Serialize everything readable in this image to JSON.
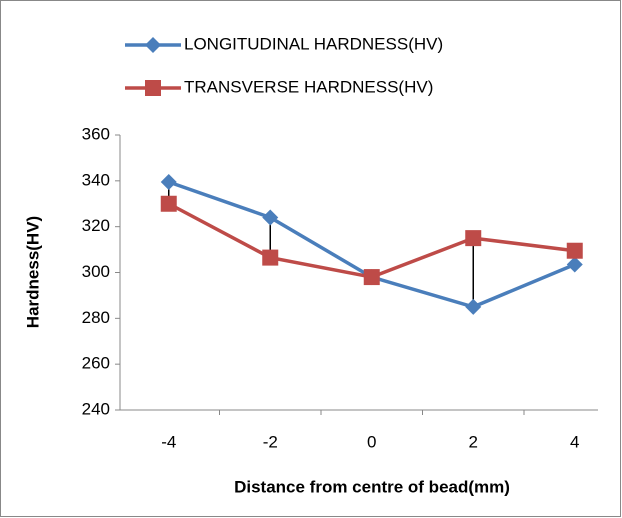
{
  "chart_data": {
    "type": "line",
    "categories": [
      "-4",
      "-2",
      "0",
      "2",
      "4"
    ],
    "series": [
      {
        "name": "LONGITUDINAL HARDNESS(HV)",
        "color": "#4a7ebb",
        "marker": "diamond",
        "values": [
          339.5,
          324,
          298,
          285,
          303.5
        ]
      },
      {
        "name": "TRANSVERSE HARDNESS(HV)",
        "color": "#be4b48",
        "marker": "square",
        "values": [
          330,
          306.5,
          298,
          315,
          309.5
        ]
      }
    ],
    "high_low_lines": true,
    "ylabel": "Hardness(HV)",
    "xlabel": "Distance from centre of bead(mm)",
    "ylim": [
      240,
      360
    ],
    "yticks": [
      240,
      260,
      280,
      300,
      320,
      340,
      360
    ],
    "grid": false,
    "legend": "top"
  }
}
